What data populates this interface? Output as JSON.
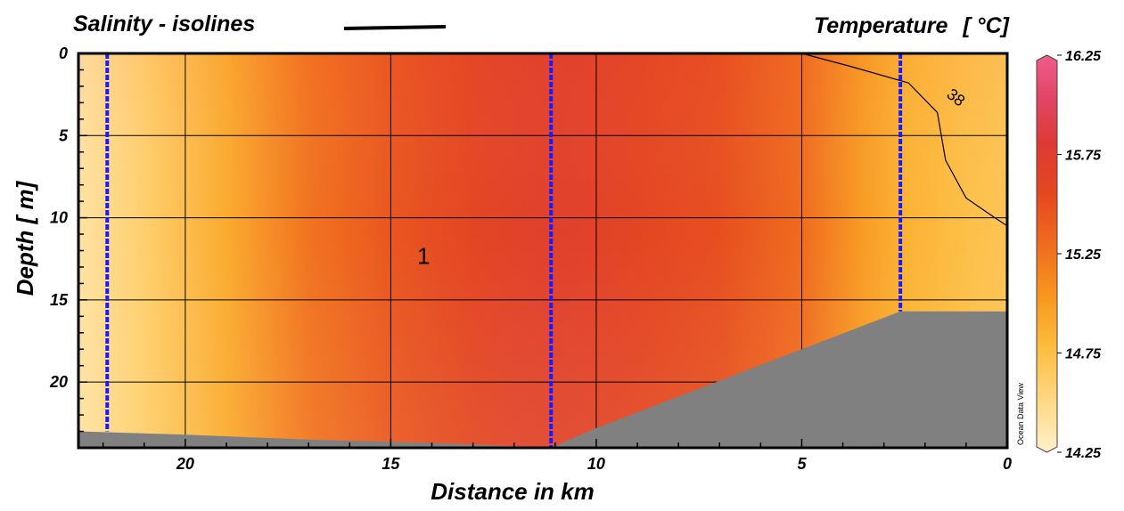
{
  "chart_data": {
    "type": "heatmap",
    "title_left": "Salinity - isolines",
    "title_right": "Temperature",
    "unit": "[ °C]",
    "xlabel": "Distance in km",
    "ylabel": "Depth  [ m]",
    "xlim": [
      22.6,
      0
    ],
    "ylim": [
      0,
      24
    ],
    "grid": true,
    "x_ticks": [
      20,
      15,
      10,
      5,
      0
    ],
    "y_ticks": [
      0,
      5,
      10,
      15,
      20
    ],
    "colorbar": {
      "ticks": [
        16.25,
        15.75,
        15.25,
        14.75,
        14.25
      ],
      "range": [
        14.25,
        16.25
      ],
      "stops": [
        {
          "value": 14.25,
          "color": "#fff0cc"
        },
        {
          "value": 14.5,
          "color": "#ffd987"
        },
        {
          "value": 14.8,
          "color": "#fcba3a"
        },
        {
          "value": 15.05,
          "color": "#f7941e"
        },
        {
          "value": 15.3,
          "color": "#ef6b1f"
        },
        {
          "value": 15.55,
          "color": "#e5481f"
        },
        {
          "value": 15.8,
          "color": "#dd3a35"
        },
        {
          "value": 16.05,
          "color": "#e2476a"
        },
        {
          "value": 16.25,
          "color": "#ef5c8a"
        }
      ]
    },
    "temperature_profile": {
      "x": [
        22.6,
        21,
        19,
        17,
        15,
        13,
        11,
        9,
        7,
        5,
        3.5,
        2.5,
        1,
        0
      ],
      "value": [
        14.4,
        14.6,
        14.9,
        15.25,
        15.45,
        15.6,
        15.7,
        15.6,
        15.5,
        15.3,
        15.0,
        14.85,
        14.75,
        14.7
      ]
    },
    "stations": [
      {
        "x": 21.9,
        "max_depth": 23.0
      },
      {
        "x": 11.1,
        "max_depth": 24.0
      },
      {
        "x": 2.6,
        "max_depth": 15.7
      }
    ],
    "bottom_profile": [
      {
        "x": 22.6,
        "depth": 23.0
      },
      {
        "x": 20,
        "depth": 23.2
      },
      {
        "x": 17,
        "depth": 23.5
      },
      {
        "x": 14,
        "depth": 23.7
      },
      {
        "x": 11.1,
        "depth": 24.0
      },
      {
        "x": 10,
        "depth": 22.8
      },
      {
        "x": 5,
        "depth": 18.0
      },
      {
        "x": 2.6,
        "depth": 15.7
      },
      {
        "x": 0,
        "depth": 15.7
      }
    ],
    "salinity_isoline": {
      "label": "38",
      "points": [
        {
          "x": 5.0,
          "depth": 0
        },
        {
          "x": 3.8,
          "depth": 0.8
        },
        {
          "x": 2.4,
          "depth": 1.8
        },
        {
          "x": 1.7,
          "depth": 3.6
        },
        {
          "x": 1.5,
          "depth": 6.5
        },
        {
          "x": 1.0,
          "depth": 8.8
        },
        {
          "x": 0.3,
          "depth": 10.0
        },
        {
          "x": 0,
          "depth": 10.5
        }
      ]
    },
    "annotations": [
      {
        "text": "1",
        "x": 14.2,
        "depth": 12.8
      }
    ],
    "watermark": "Ocean Data View"
  }
}
